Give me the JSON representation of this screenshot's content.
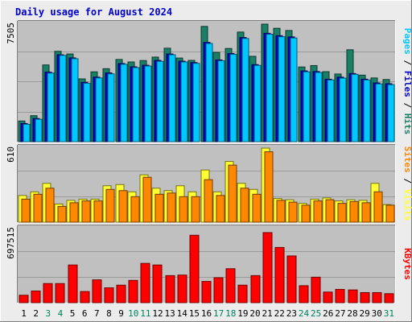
{
  "chart_data": {
    "type": "bar",
    "title": "Daily usage for August 2024",
    "colors": {
      "background": "#ececec",
      "plot_background": "#c0c0c0",
      "title": "#0000cc",
      "hits": "#1b7f66",
      "files": "#0000cc",
      "pages": "#00c8ff",
      "visits": "#ffff33",
      "sites": "#ff8800",
      "kbytes": "#ff0000",
      "weekend_label": "#008060",
      "weekday_label": "#000000"
    },
    "categories": [
      "1",
      "2",
      "3",
      "4",
      "5",
      "6",
      "7",
      "8",
      "9",
      "10",
      "11",
      "12",
      "13",
      "14",
      "15",
      "16",
      "17",
      "18",
      "19",
      "20",
      "21",
      "22",
      "23",
      "24",
      "25",
      "26",
      "27",
      "28",
      "29",
      "30",
      "31"
    ],
    "weekend_days": [
      "3",
      "4",
      "10",
      "11",
      "17",
      "18",
      "24",
      "25",
      "31"
    ],
    "panels": [
      {
        "id": "top",
        "ymax": 7505,
        "ymax_label": "7505",
        "right_labels": [
          {
            "text": "Pages",
            "color": "#00c8ff"
          },
          {
            "text": " / ",
            "color": "#000000"
          },
          {
            "text": "Files",
            "color": "#0000cc"
          },
          {
            "text": " / ",
            "color": "#000000"
          },
          {
            "text": "Hits",
            "color": "#1b7f66"
          }
        ],
        "series": [
          {
            "name": "Hits",
            "color": "#1b7f66",
            "values": [
              1320,
              1660,
              4900,
              5770,
              5600,
              4010,
              4460,
              4660,
              5250,
              5090,
              5180,
              5400,
              5970,
              5340,
              5190,
              7360,
              5700,
              5950,
              7000,
              5450,
              7505,
              7240,
              7100,
              4770,
              4860,
              4470,
              4320,
              5870,
              4250,
              4070,
              3970
            ]
          },
          {
            "name": "Files",
            "color": "#0000cc",
            "values": [
              1160,
              1480,
              4440,
              5550,
              5350,
              3790,
              4120,
              4390,
              4990,
              4780,
              4880,
              5190,
              5600,
              5140,
              5050,
              6340,
              5220,
              5630,
              6650,
              4920,
              6920,
              6770,
              6690,
              4520,
              4480,
              3990,
              4120,
              4350,
              3990,
              3750,
              3700
            ]
          },
          {
            "name": "Pages",
            "color": "#00c8ff",
            "values": [
              1110,
              1430,
              4380,
              5510,
              5300,
              3730,
              4070,
              4330,
              4940,
              4730,
              4830,
              5130,
              5550,
              5090,
              5000,
              6270,
              5170,
              5580,
              6590,
              4870,
              6860,
              6700,
              6620,
              4460,
              4420,
              3940,
              4060,
              4300,
              3940,
              3690,
              3640
            ]
          }
        ]
      },
      {
        "id": "middle",
        "ymax": 610,
        "ymax_label": "610",
        "right_labels": [
          {
            "text": "Sites",
            "color": "#ff8800"
          },
          {
            "text": " / ",
            "color": "#000000"
          },
          {
            "text": "Visits",
            "color": "#ffff33"
          }
        ],
        "series": [
          {
            "name": "Visits",
            "color": "#ffff33",
            "values": [
              220,
              250,
              320,
              150,
              180,
              190,
              190,
              300,
              310,
              250,
              390,
              280,
              260,
              300,
              250,
              430,
              250,
              500,
              320,
              270,
              610,
              195,
              185,
              155,
              190,
              200,
              175,
              185,
              180,
              320,
              145
            ]
          },
          {
            "name": "Sites",
            "color": "#ff8800",
            "values": [
              190,
              230,
              280,
              130,
              160,
              175,
              175,
              270,
              260,
              210,
              370,
              230,
              240,
              210,
              210,
              350,
              220,
              470,
              280,
              230,
              580,
              180,
              165,
              140,
              175,
              185,
              155,
              170,
              160,
              250,
              140
            ]
          }
        ]
      },
      {
        "id": "bottom",
        "ymax": 697515,
        "ymax_label": "697515",
        "right_labels": [
          {
            "text": "KBytes",
            "color": "#ff0000"
          }
        ],
        "series": [
          {
            "name": "KBytes",
            "color": "#ff0000",
            "values": [
              70000,
              110000,
              180000,
              180000,
              355000,
              105000,
              215000,
              140000,
              165000,
              210000,
              370000,
              355000,
              255000,
              260000,
              635000,
              200000,
              235000,
              320000,
              165000,
              255000,
              660000,
              520000,
              440000,
              160000,
              240000,
              100000,
              125000,
              120000,
              95000,
              95000,
              85000
            ]
          }
        ]
      }
    ]
  }
}
